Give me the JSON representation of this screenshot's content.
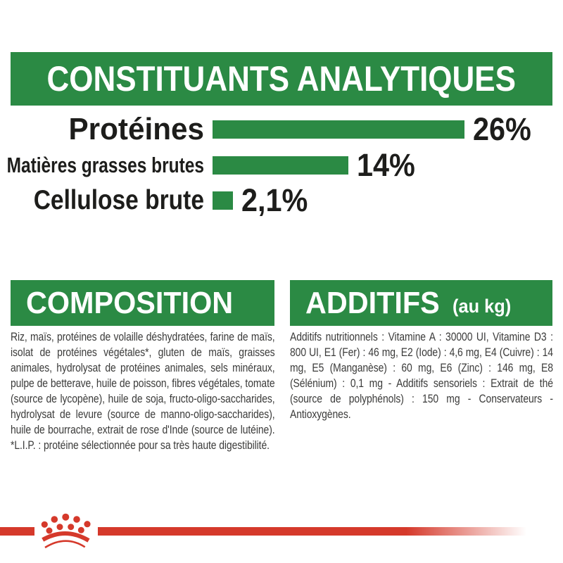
{
  "colors": {
    "green": "#2b8a44",
    "red": "#d5392b",
    "ink": "#1d1d1b",
    "body_text": "#3b3b3a",
    "white": "#ffffff"
  },
  "analytical": {
    "title": "CONSTITUANTS ANALYTIQUES"
  },
  "chart_data": {
    "type": "bar",
    "orientation": "horizontal",
    "title": "CONSTITUANTS ANALYTIQUES",
    "categories": [
      "Protéines",
      "Matières grasses brutes",
      "Cellulose brute"
    ],
    "values": [
      26,
      14,
      2.1
    ],
    "value_labels": [
      "26%",
      "14%",
      "2,1%"
    ],
    "unit": "%",
    "xlim": [
      0,
      26
    ],
    "bar_color": "#2b8a44",
    "grid": false,
    "legend": false
  },
  "composition": {
    "title": "COMPOSITION",
    "body": "Riz, maïs, protéines de volaille déshydratées, farine de maïs, isolat de protéines végétales*, gluten de maïs, graisses animales, hydrolysat de protéines animales, sels minéraux, pulpe de betterave, huile de poisson, fibres végétales, tomate (source de lycopène), huile de soja, fructo-oligo-saccharides, hydrolysat de levure (source de manno-oligo-saccharides), huile de bourrache, extrait de rose d'Inde (source de lutéine). *L.I.P. : protéine sélectionnée pour sa très haute digestibilité."
  },
  "additifs": {
    "title": "ADDITIFS",
    "unit_label": "(au kg)",
    "body": "Additifs nutritionnels : Vitamine A : 30000 UI, Vitamine D3 : 800 UI, E1 (Fer) : 46 mg, E2 (Iode) : 4,6 mg, E4 (Cuivre) : 14 mg, E5 (Manganèse) : 60 mg, E6 (Zinc) : 146 mg, E8 (Sélénium) : 0,1 mg - Additifs sensoriels : Extrait de thé (source de polyphénols) : 150 mg - Conservateurs - Antioxygènes."
  },
  "footer": {
    "logo": "royal-canin-crown"
  }
}
